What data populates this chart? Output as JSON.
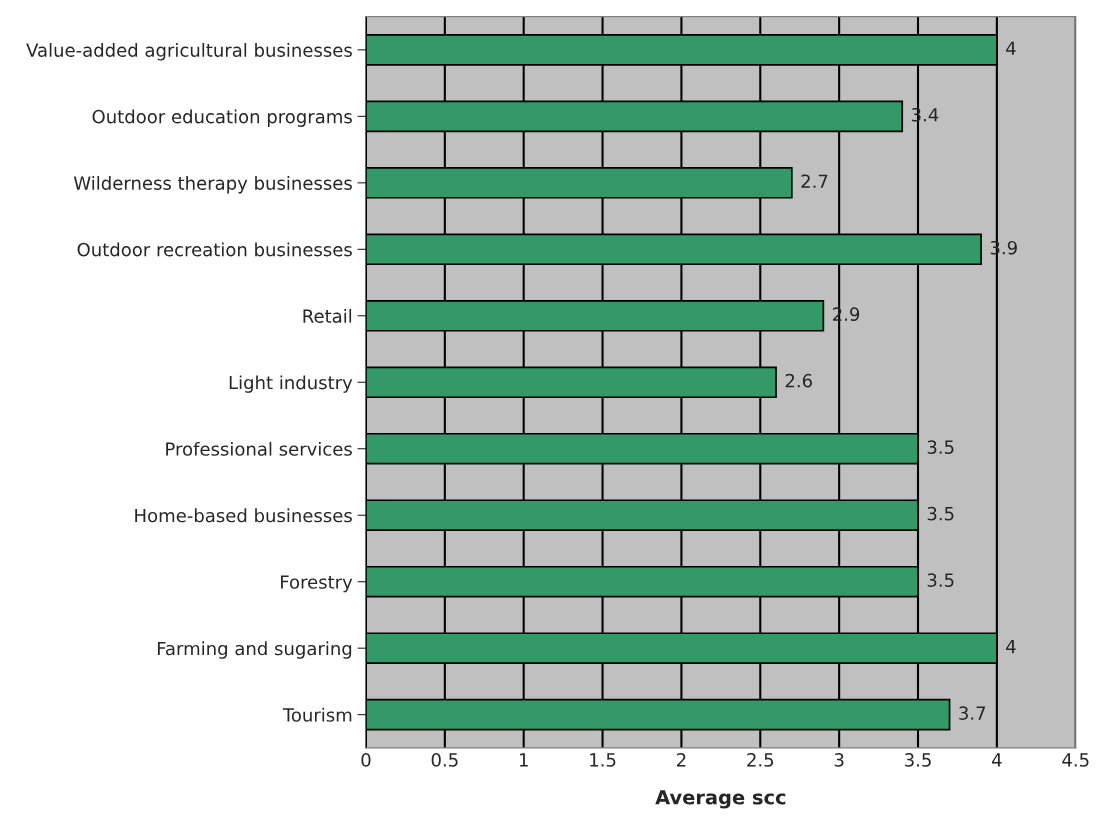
{
  "chart_data": {
    "type": "bar",
    "orientation": "horizontal",
    "xlabel": "Average scc",
    "categories": [
      "Value-added agricultural businesses",
      "Outdoor education programs",
      "Wilderness therapy businesses",
      "Outdoor recreation businesses",
      "Retail",
      "Light industry",
      "Professional services",
      "Home-based businesses",
      "Forestry",
      "Farming and sugaring",
      "Tourism"
    ],
    "values": [
      4,
      3.4,
      2.7,
      3.9,
      2.9,
      2.6,
      3.5,
      3.5,
      3.5,
      4,
      3.7
    ],
    "color": "#339966",
    "xlim": [
      0,
      4.5
    ],
    "xticks": [
      0,
      0.5,
      1,
      1.5,
      2,
      2.5,
      3,
      3.5,
      4,
      4.5
    ],
    "grid": "x",
    "data_labels": true
  }
}
